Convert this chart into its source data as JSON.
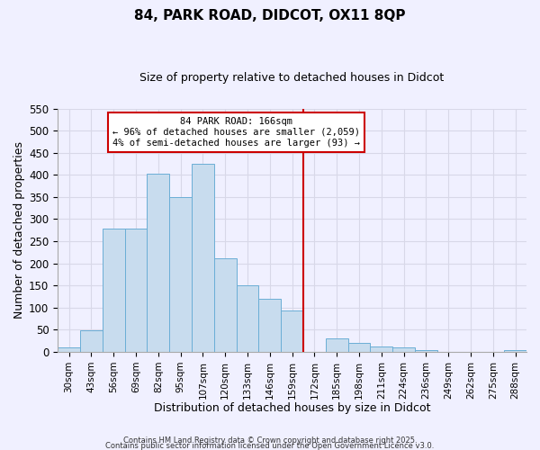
{
  "title": "84, PARK ROAD, DIDCOT, OX11 8QP",
  "subtitle": "Size of property relative to detached houses in Didcot",
  "xlabel": "Distribution of detached houses by size in Didcot",
  "ylabel": "Number of detached properties",
  "bar_labels": [
    "30sqm",
    "43sqm",
    "56sqm",
    "69sqm",
    "82sqm",
    "95sqm",
    "107sqm",
    "120sqm",
    "133sqm",
    "146sqm",
    "159sqm",
    "172sqm",
    "185sqm",
    "198sqm",
    "211sqm",
    "224sqm",
    "236sqm",
    "249sqm",
    "262sqm",
    "275sqm",
    "288sqm"
  ],
  "bar_values": [
    10,
    48,
    278,
    278,
    403,
    350,
    425,
    212,
    150,
    120,
    93,
    0,
    30,
    20,
    12,
    10,
    4,
    0,
    0,
    0,
    4
  ],
  "bar_color": "#c8dcee",
  "bar_edge_color": "#6baed6",
  "vline_color": "#cc0000",
  "annotation_title": "84 PARK ROAD: 166sqm",
  "annotation_line1": "← 96% of detached houses are smaller (2,059)",
  "annotation_line2": "4% of semi-detached houses are larger (93) →",
  "ylim": [
    0,
    550
  ],
  "yticks": [
    0,
    50,
    100,
    150,
    200,
    250,
    300,
    350,
    400,
    450,
    500,
    550
  ],
  "footer1": "Contains HM Land Registry data © Crown copyright and database right 2025.",
  "footer2": "Contains public sector information licensed under the Open Government Licence v3.0.",
  "bg_color": "#f0f0ff",
  "grid_color": "#d8d8e8"
}
